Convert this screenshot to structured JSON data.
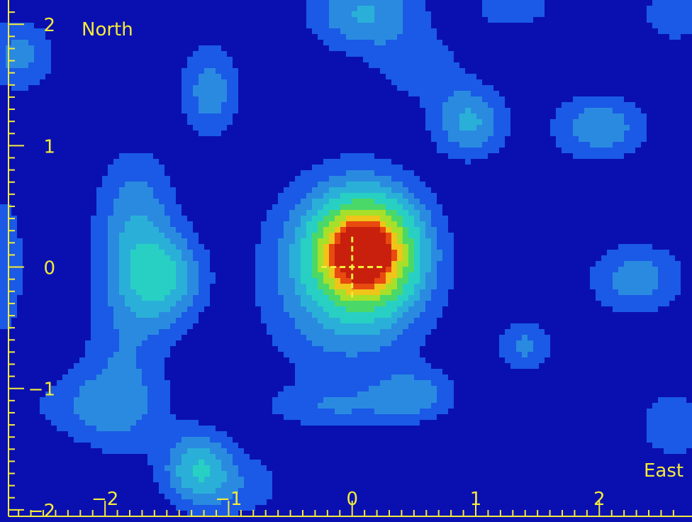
{
  "chart_data": {
    "type": "heatmap",
    "title": "",
    "xlabel": "East",
    "ylabel": "North",
    "xlim": [
      -2.85,
      2.75
    ],
    "ylim": [
      -2.1,
      2.2
    ],
    "x_ticks": [
      "−2",
      "−1",
      "0",
      "1",
      "2"
    ],
    "y_ticks": [
      "2",
      "1",
      "0",
      "−1",
      "−2"
    ],
    "x_tick_values": [
      -2,
      -1,
      0,
      1,
      2
    ],
    "y_tick_values": [
      2,
      1,
      0,
      -1,
      -2
    ],
    "crosshair": {
      "x": 0,
      "y": 0,
      "half_width": 0.25,
      "half_height": 0.25,
      "color": "#f4ea3a"
    },
    "peak": {
      "x": 0.1,
      "y": 0.12
    },
    "colors": {
      "background": "#0a10b0",
      "level1": "#1a5ae6",
      "level2": "#2a8ae0",
      "level3": "#2ab0d8",
      "level4": "#28d0c4",
      "level5": "#4ad868",
      "level6": "#a6e02a",
      "level7": "#f0c418",
      "level8": "#e84a10",
      "level9": "#c8200c",
      "axis": "#f4ea3a"
    },
    "sources": [
      {
        "x": 0.1,
        "y": 0.12,
        "amp": 1.0,
        "sx": 0.28,
        "sy": 0.3
      },
      {
        "x": -0.05,
        "y": -0.1,
        "amp": 0.25,
        "sx": 0.45,
        "sy": 0.55
      },
      {
        "x": -1.55,
        "y": -0.1,
        "amp": 0.34,
        "sx": 0.22,
        "sy": 0.25
      },
      {
        "x": -1.75,
        "y": 0.35,
        "amp": 0.22,
        "sx": 0.22,
        "sy": 0.4
      },
      {
        "x": -1.85,
        "y": -0.85,
        "amp": 0.14,
        "sx": 0.25,
        "sy": 0.5
      },
      {
        "x": -2.1,
        "y": -1.15,
        "amp": 0.13,
        "sx": 0.35,
        "sy": 0.2
      },
      {
        "x": -1.25,
        "y": -1.65,
        "amp": 0.3,
        "sx": 0.18,
        "sy": 0.2
      },
      {
        "x": -0.95,
        "y": -1.8,
        "amp": 0.12,
        "sx": 0.3,
        "sy": 0.2
      },
      {
        "x": -1.15,
        "y": 1.45,
        "amp": 0.2,
        "sx": 0.16,
        "sy": 0.26
      },
      {
        "x": 0.1,
        "y": 2.1,
        "amp": 0.25,
        "sx": 0.3,
        "sy": 0.22
      },
      {
        "x": 0.95,
        "y": 1.2,
        "amp": 0.26,
        "sx": 0.2,
        "sy": 0.2
      },
      {
        "x": 0.55,
        "y": 1.65,
        "amp": 0.12,
        "sx": 0.25,
        "sy": 0.2
      },
      {
        "x": 2.0,
        "y": 1.15,
        "amp": 0.22,
        "sx": 0.26,
        "sy": 0.18
      },
      {
        "x": 2.3,
        "y": -0.1,
        "amp": 0.2,
        "sx": 0.26,
        "sy": 0.2
      },
      {
        "x": 1.4,
        "y": -0.65,
        "amp": 0.17,
        "sx": 0.15,
        "sy": 0.15
      },
      {
        "x": 0.5,
        "y": -1.05,
        "amp": 0.18,
        "sx": 0.22,
        "sy": 0.14
      },
      {
        "x": -0.15,
        "y": -1.15,
        "amp": 0.12,
        "sx": 0.4,
        "sy": 0.12
      },
      {
        "x": -2.7,
        "y": 1.75,
        "amp": 0.18,
        "sx": 0.2,
        "sy": 0.2
      },
      {
        "x": 2.6,
        "y": -1.3,
        "amp": 0.14,
        "sx": 0.2,
        "sy": 0.2
      },
      {
        "x": 1.3,
        "y": 2.15,
        "amp": 0.12,
        "sx": 0.25,
        "sy": 0.15
      },
      {
        "x": 2.6,
        "y": 2.1,
        "amp": 0.12,
        "sx": 0.2,
        "sy": 0.2
      },
      {
        "x": -2.8,
        "y": 0.0,
        "amp": 0.1,
        "sx": 0.15,
        "sy": 0.6
      }
    ],
    "levels": [
      0.07,
      0.15,
      0.24,
      0.34,
      0.48,
      0.6,
      0.72,
      0.84,
      0.93
    ]
  }
}
